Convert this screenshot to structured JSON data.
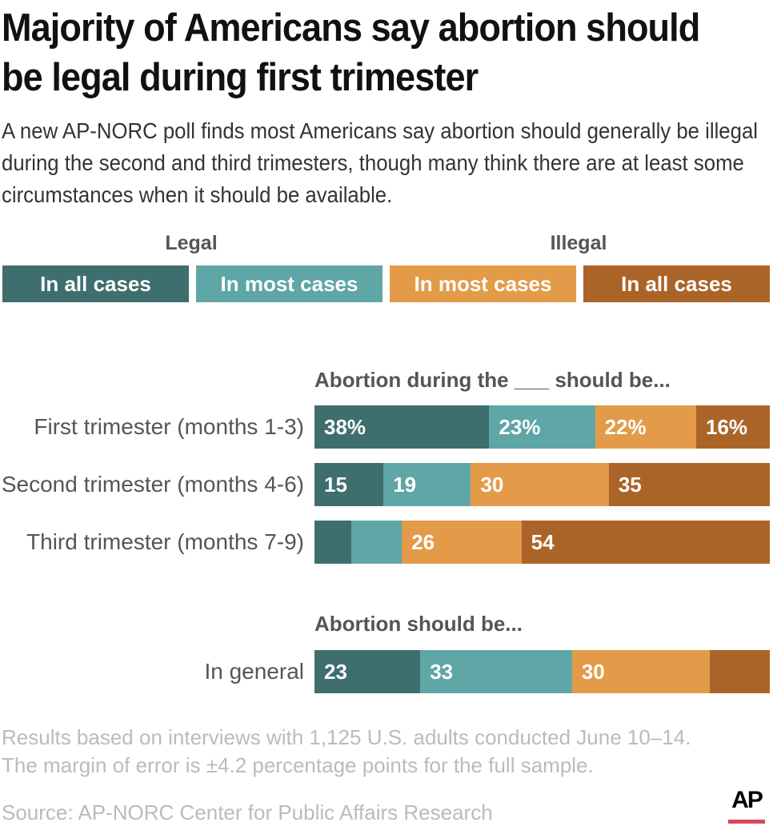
{
  "title": "Majority of Americans say abortion should be legal during first trimester",
  "subtitle": "A new AP-NORC poll finds most Americans say abortion should generally be illegal during the second and third trimesters, though many think there are at least some circumstances when it should be available.",
  "legend": {
    "legal": "Legal",
    "illegal": "Illegal",
    "items": [
      "In all cases",
      "In most cases",
      "In most cases",
      "In all cases"
    ]
  },
  "colors": [
    "#3f6e6e",
    "#5fa6a6",
    "#e39b4a",
    "#ab6428"
  ],
  "chart_data": {
    "type": "bar",
    "orientation": "horizontal",
    "stacked": true,
    "series": [
      {
        "name": "Legal: In all cases"
      },
      {
        "name": "Legal: In most cases"
      },
      {
        "name": "Illegal: In most cases"
      },
      {
        "name": "Illegal: In all cases"
      }
    ],
    "groups": [
      {
        "header": "Abortion during the ___ should be...",
        "rows": [
          {
            "label": "First trimester (months 1-3)",
            "values": [
              38,
              23,
              22,
              16
            ],
            "labels": [
              "38%",
              "23%",
              "22%",
              "16%"
            ]
          },
          {
            "label": "Second trimester (months 4-6)",
            "values": [
              15,
              19,
              30,
              35
            ],
            "labels": [
              "15",
              "19",
              "30",
              "35"
            ]
          },
          {
            "label": "Third trimester (months 7-9)",
            "values": [
              8,
              11,
              26,
              54
            ],
            "labels": [
              "",
              "",
              "26",
              "54"
            ]
          }
        ]
      },
      {
        "header": "Abortion should be...",
        "rows": [
          {
            "label": "In general",
            "values": [
              23,
              33,
              30,
              13
            ],
            "labels": [
              "23",
              "33",
              "30",
              ""
            ]
          }
        ]
      }
    ]
  },
  "notes": [
    "Results based on interviews with 1,125 U.S. adults conducted June 10–14.",
    "The margin of error is ±4.2 percentage points for the full sample."
  ],
  "source": "Source:  AP-NORC Center for Public Affairs Research",
  "logo": "AP"
}
